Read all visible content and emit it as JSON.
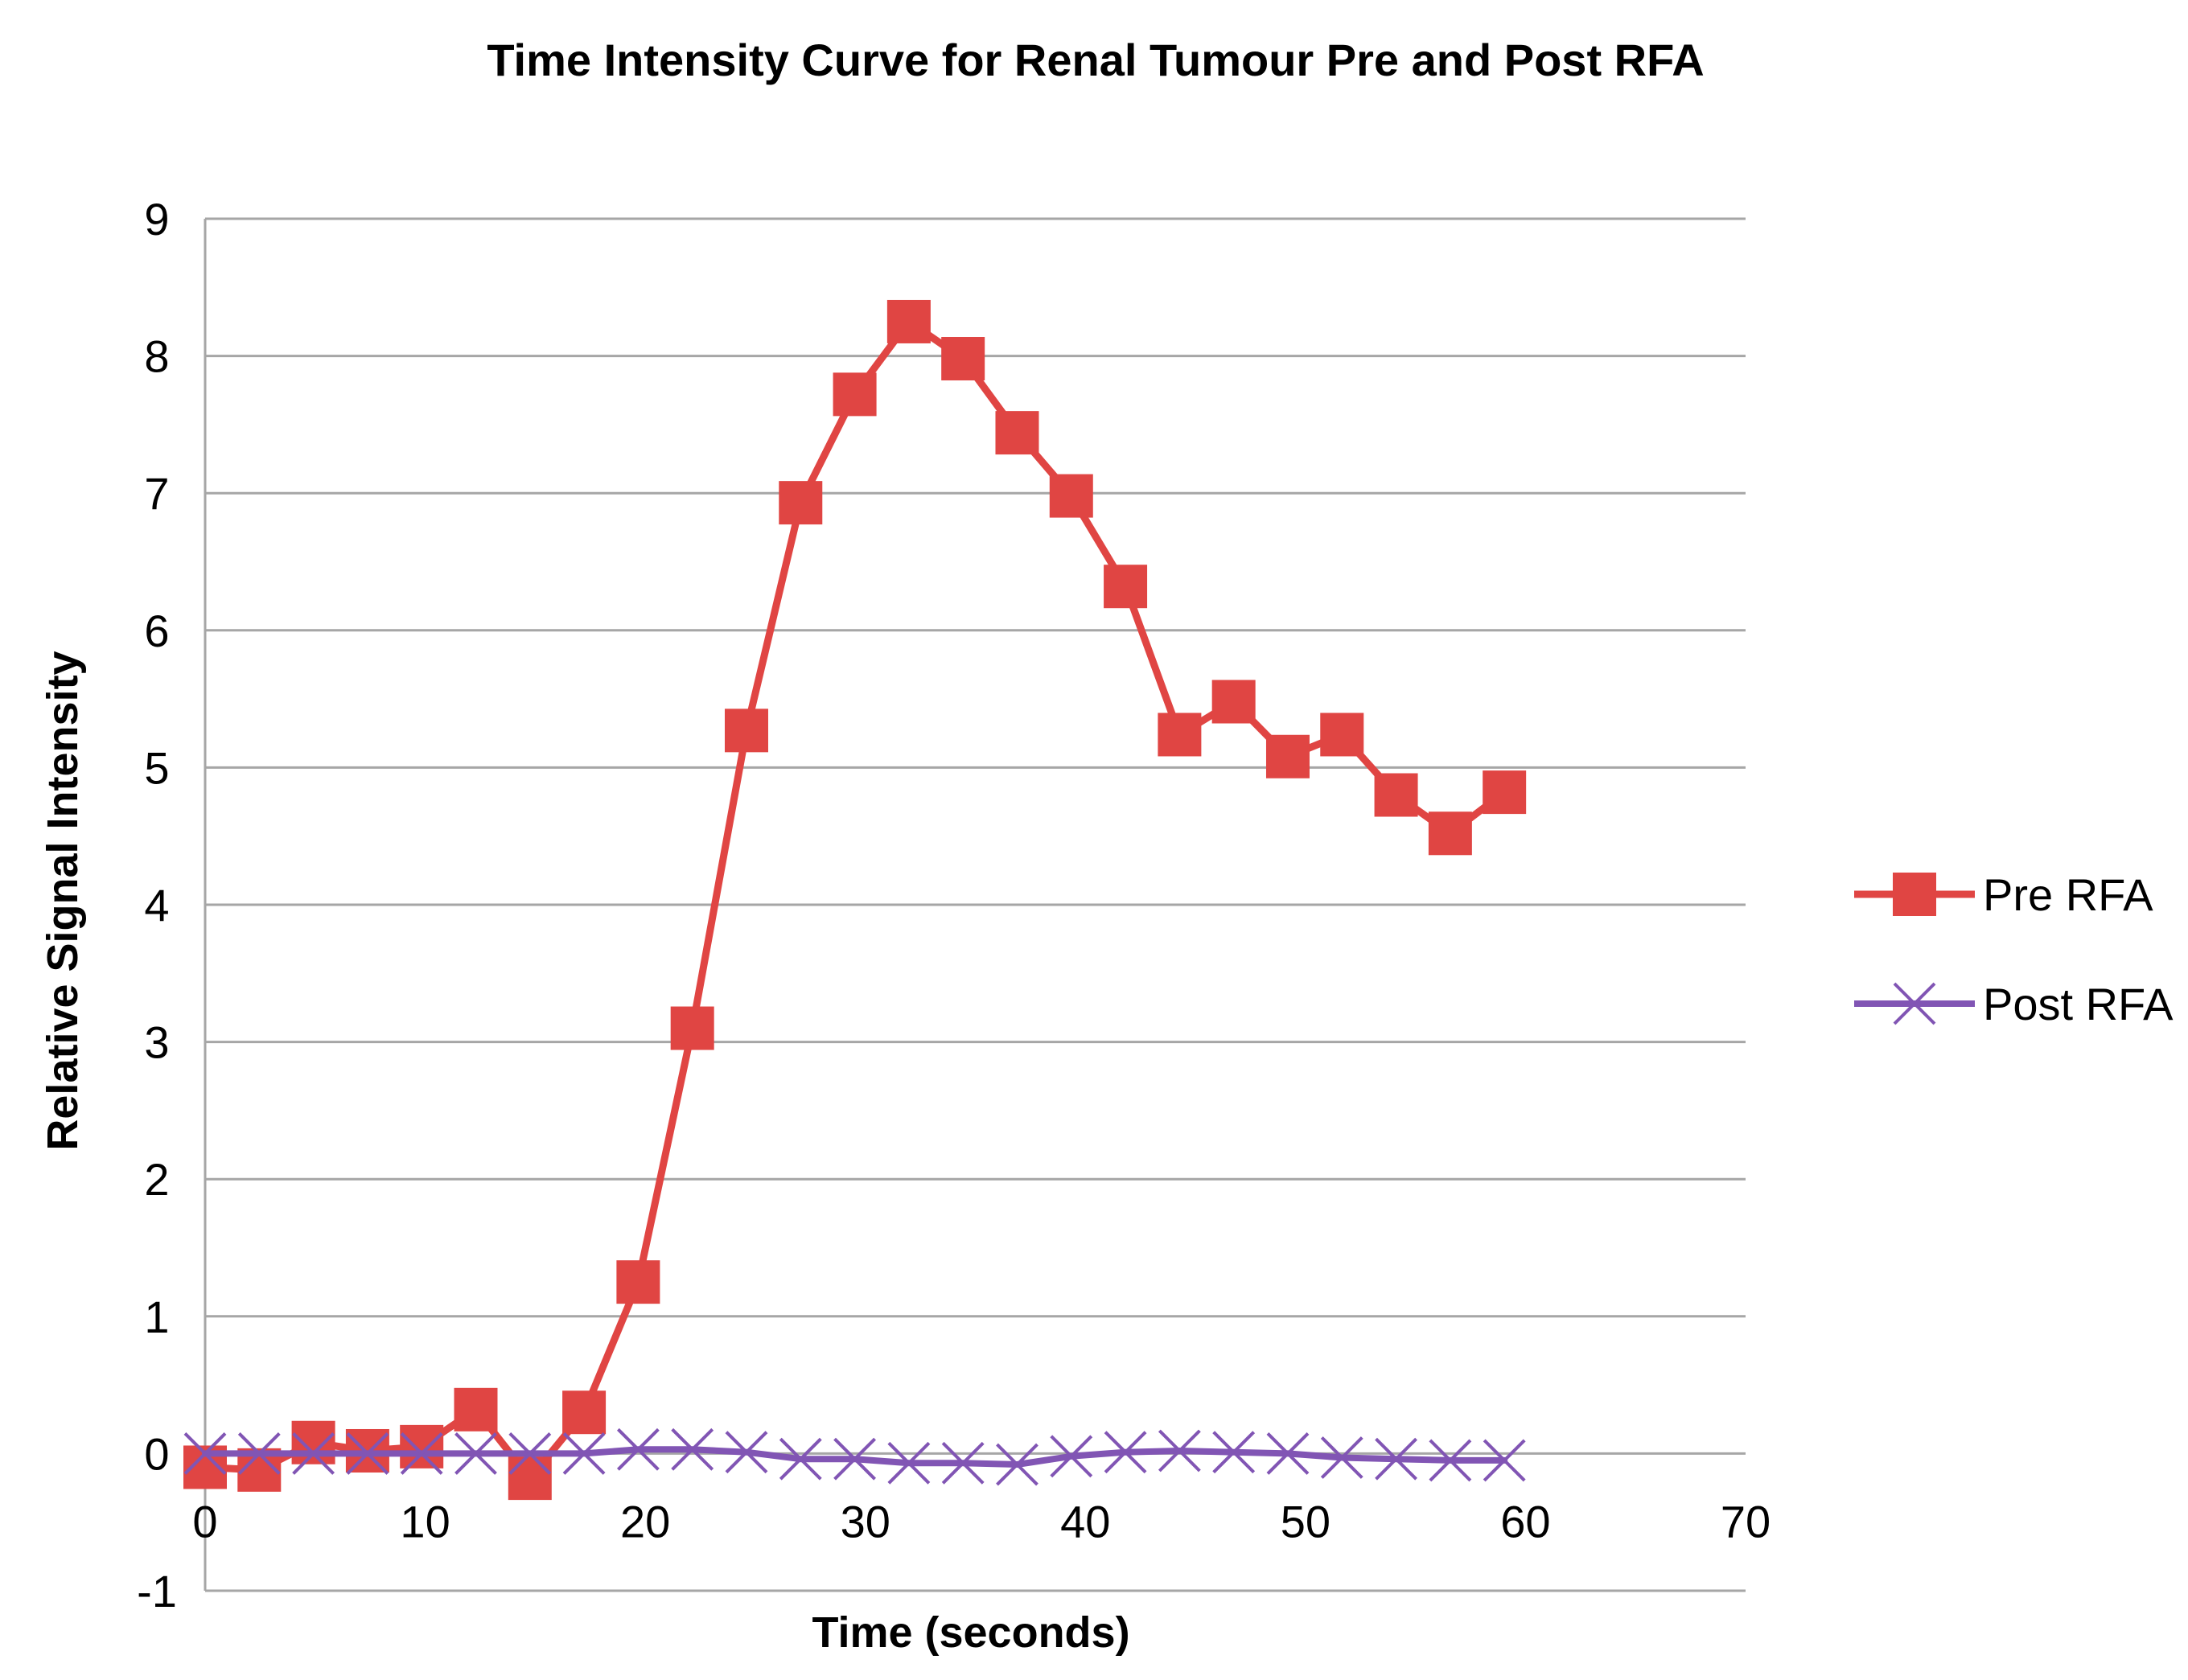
{
  "chart_data": {
    "type": "line",
    "title": "Time Intensity Curve for Renal Tumour Pre and Post RFA",
    "xlabel": "Time (seconds)",
    "ylabel": "Relative Signal Intensity",
    "xlim": [
      0,
      70
    ],
    "ylim": [
      -1,
      9
    ],
    "xticks": [
      0,
      10,
      20,
      30,
      40,
      50,
      60,
      70
    ],
    "yticks": [
      -1,
      0,
      1,
      2,
      3,
      4,
      5,
      6,
      7,
      8,
      9
    ],
    "grid": true,
    "legend_position": "right",
    "series": [
      {
        "name": "Pre RFA",
        "color": "#e04543",
        "marker": "square",
        "x": [
          0,
          2.46,
          4.92,
          7.38,
          9.84,
          12.3,
          14.76,
          17.22,
          19.68,
          22.14,
          24.6,
          27.06,
          29.52,
          31.98,
          34.44,
          36.9,
          39.36,
          41.82,
          44.28,
          46.74,
          49.2,
          51.66,
          54.12,
          56.58,
          59.04
        ],
        "y": [
          -0.1,
          -0.12,
          0.08,
          0.02,
          0.05,
          0.32,
          -0.18,
          0.3,
          1.25,
          3.1,
          5.27,
          6.93,
          7.72,
          8.25,
          7.98,
          7.44,
          6.98,
          6.32,
          5.24,
          5.48,
          5.08,
          5.24,
          4.8,
          4.52,
          4.82
        ]
      },
      {
        "name": "Post RFA",
        "color": "#8155b4",
        "marker": "x",
        "x": [
          0,
          2.46,
          4.92,
          7.38,
          9.84,
          12.3,
          14.76,
          17.22,
          19.68,
          22.14,
          24.6,
          27.06,
          29.52,
          31.98,
          34.44,
          36.9,
          39.36,
          41.82,
          44.28,
          46.74,
          49.2,
          51.66,
          54.12,
          56.58,
          59.04
        ],
        "y": [
          0.0,
          0.0,
          0.0,
          0.0,
          0.0,
          0.0,
          0.0,
          0.0,
          0.03,
          0.03,
          0.01,
          -0.04,
          -0.04,
          -0.07,
          -0.07,
          -0.08,
          -0.02,
          0.01,
          0.02,
          0.01,
          0.0,
          -0.03,
          -0.04,
          -0.05,
          -0.05
        ]
      }
    ]
  }
}
